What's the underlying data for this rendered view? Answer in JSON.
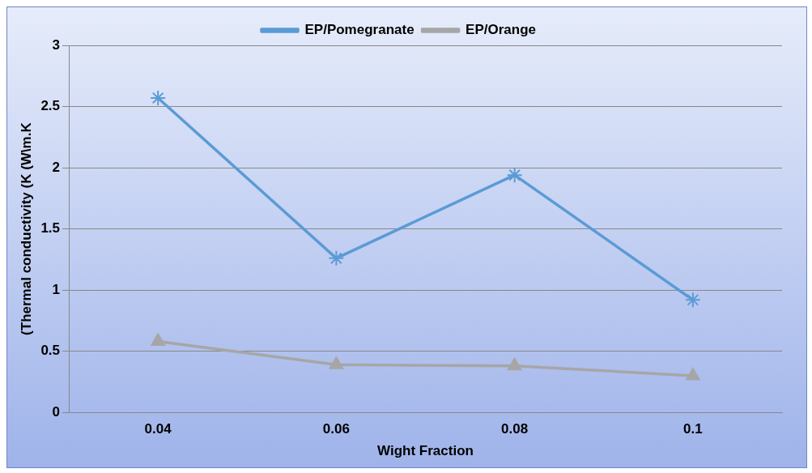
{
  "chart_data": {
    "type": "line",
    "xlabel": "Wight Fraction",
    "ylabel": "(Thermal conductivity (K (W\\m.K",
    "categories": [
      "0.04",
      "0.06",
      "0.08",
      "0.1"
    ],
    "series": [
      {
        "name": "EP/Pomegranate",
        "color": "#5b9bd5",
        "marker": "cross",
        "values": [
          2.57,
          1.26,
          1.94,
          0.92
        ]
      },
      {
        "name": "EP/Orange",
        "color": "#a6a6a6",
        "marker": "triangle",
        "values": [
          0.58,
          0.39,
          0.38,
          0.3
        ]
      }
    ],
    "ylim": [
      0,
      3
    ],
    "yticks": [
      0,
      0.5,
      1,
      1.5,
      2,
      2.5,
      3
    ],
    "grid": "y",
    "legend": "top",
    "line_style": "solid"
  }
}
